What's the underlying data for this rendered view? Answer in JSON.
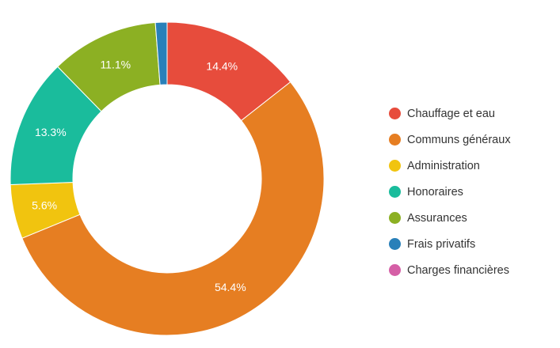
{
  "chart_data": {
    "type": "pie",
    "variant": "donut",
    "title": "",
    "legend_position": "right",
    "categories": [
      "Chauffage et eau",
      "Communs généraux",
      "Administration",
      "Honoraires",
      "Assurances",
      "Frais privatifs",
      "Charges financières"
    ],
    "values": [
      14.4,
      54.4,
      5.6,
      13.3,
      11.1,
      1.2,
      0.0
    ],
    "labels": [
      "14.4%",
      "54.4%",
      "5.6%",
      "13.3%",
      "11.1%",
      "",
      ""
    ],
    "colors": [
      "#e74c3c",
      "#e67e22",
      "#f1c40f",
      "#1abc9c",
      "#8cb023",
      "#2980b9",
      "#d55fa6"
    ]
  }
}
